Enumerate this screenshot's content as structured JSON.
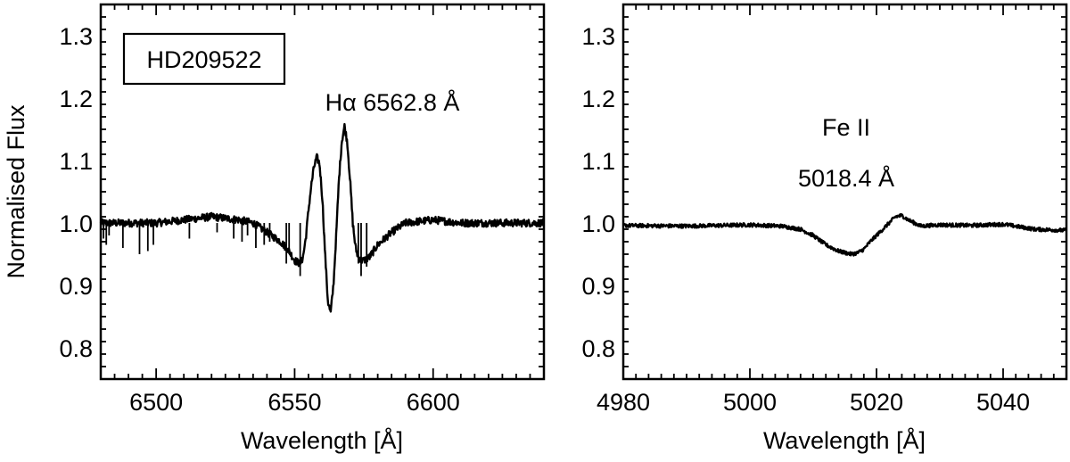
{
  "colors": {
    "line": "#000000",
    "frame": "#000000",
    "background": "#ffffff"
  },
  "chart_data": [
    {
      "type": "line",
      "xlabel": "Wavelength [Å]",
      "ylabel": "Normalised Flux",
      "xlim": [
        6480,
        6640
      ],
      "ylim": [
        0.75,
        1.35
      ],
      "xticks": [
        6500,
        6550,
        6600
      ],
      "xtick_labels": [
        "6500",
        "6550",
        "6600"
      ],
      "yticks": [
        0.8,
        0.9,
        1.0,
        1.1,
        1.2,
        1.3
      ],
      "ytick_labels": [
        "0.8",
        "0.9",
        "1.0",
        "1.1",
        "1.2",
        "1.3"
      ],
      "grid": false,
      "legend_box": "HD209522",
      "annotation": {
        "line1": "Hα  6562.8 Å",
        "line2": ""
      },
      "series": [
        {
          "x": [
            6480,
            6490,
            6500,
            6510,
            6520,
            6530,
            6535,
            6540,
            6545,
            6548,
            6550,
            6552,
            6553,
            6554,
            6555,
            6556,
            6557,
            6558,
            6559,
            6560,
            6561,
            6562,
            6563,
            6564,
            6565,
            6566,
            6567,
            6568,
            6569,
            6570,
            6571,
            6572,
            6573,
            6574,
            6575,
            6577,
            6580,
            6585,
            6590,
            6600,
            6610,
            6620,
            6630,
            6640
          ],
          "y": [
            1.0,
            1.0,
            1.0,
            1.005,
            1.01,
            1.005,
            1.0,
            0.985,
            0.97,
            0.955,
            0.94,
            0.935,
            0.945,
            0.975,
            1.02,
            1.06,
            1.09,
            1.105,
            1.095,
            1.04,
            0.95,
            0.875,
            0.855,
            0.9,
            0.98,
            1.07,
            1.13,
            1.155,
            1.13,
            1.07,
            1.0,
            0.96,
            0.945,
            0.94,
            0.94,
            0.945,
            0.965,
            0.985,
            1.0,
            1.005,
            1.0,
            1.0,
            1.0,
            1.0
          ]
        }
      ],
      "absorption_spikes": [
        {
          "x": 6481,
          "y": 0.975
        },
        {
          "x": 6482,
          "y": 0.965
        },
        {
          "x": 6483,
          "y": 0.98
        },
        {
          "x": 6488,
          "y": 0.96
        },
        {
          "x": 6494,
          "y": 0.95
        },
        {
          "x": 6497,
          "y": 0.955
        },
        {
          "x": 6499,
          "y": 0.965
        },
        {
          "x": 6512,
          "y": 0.975
        },
        {
          "x": 6522,
          "y": 0.985
        },
        {
          "x": 6528,
          "y": 0.975
        },
        {
          "x": 6531,
          "y": 0.97
        },
        {
          "x": 6533,
          "y": 0.98
        },
        {
          "x": 6536,
          "y": 0.96
        },
        {
          "x": 6539,
          "y": 0.965
        },
        {
          "x": 6541,
          "y": 0.97
        },
        {
          "x": 6547,
          "y": 0.935
        },
        {
          "x": 6548,
          "y": 0.95
        },
        {
          "x": 6552,
          "y": 0.915
        },
        {
          "x": 6574,
          "y": 0.915
        },
        {
          "x": 6573,
          "y": 0.935
        },
        {
          "x": 6576,
          "y": 0.93
        }
      ]
    },
    {
      "type": "line",
      "xlabel": "Wavelength [Å]",
      "ylabel": "",
      "xlim": [
        4980,
        5050
      ],
      "ylim": [
        0.75,
        1.35
      ],
      "xticks": [
        4980,
        5000,
        5020,
        5040
      ],
      "xtick_labels": [
        "4980",
        "5000",
        "5020",
        "5040"
      ],
      "yticks": [
        0.8,
        0.9,
        1.0,
        1.1,
        1.2,
        1.3
      ],
      "ytick_labels": [
        "0.8",
        "0.9",
        "1.0",
        "1.1",
        "1.2",
        "1.3"
      ],
      "grid": false,
      "legend_box": "",
      "annotation": {
        "line1": "Fe II",
        "line2": "5018.4 Å"
      },
      "series": [
        {
          "x": [
            4980,
            4990,
            5000,
            5005,
            5008,
            5010,
            5012,
            5014,
            5016,
            5017,
            5018,
            5019,
            5020,
            5021,
            5022,
            5023,
            5024,
            5025,
            5027,
            5030,
            5035,
            5040,
            5045,
            5050
          ],
          "y": [
            0.996,
            0.995,
            0.997,
            0.995,
            0.99,
            0.98,
            0.965,
            0.955,
            0.95,
            0.952,
            0.958,
            0.97,
            0.98,
            0.99,
            1.0,
            1.01,
            1.012,
            1.005,
            0.995,
            0.997,
            0.996,
            0.998,
            0.99,
            0.988
          ]
        }
      ],
      "absorption_spikes": []
    }
  ]
}
